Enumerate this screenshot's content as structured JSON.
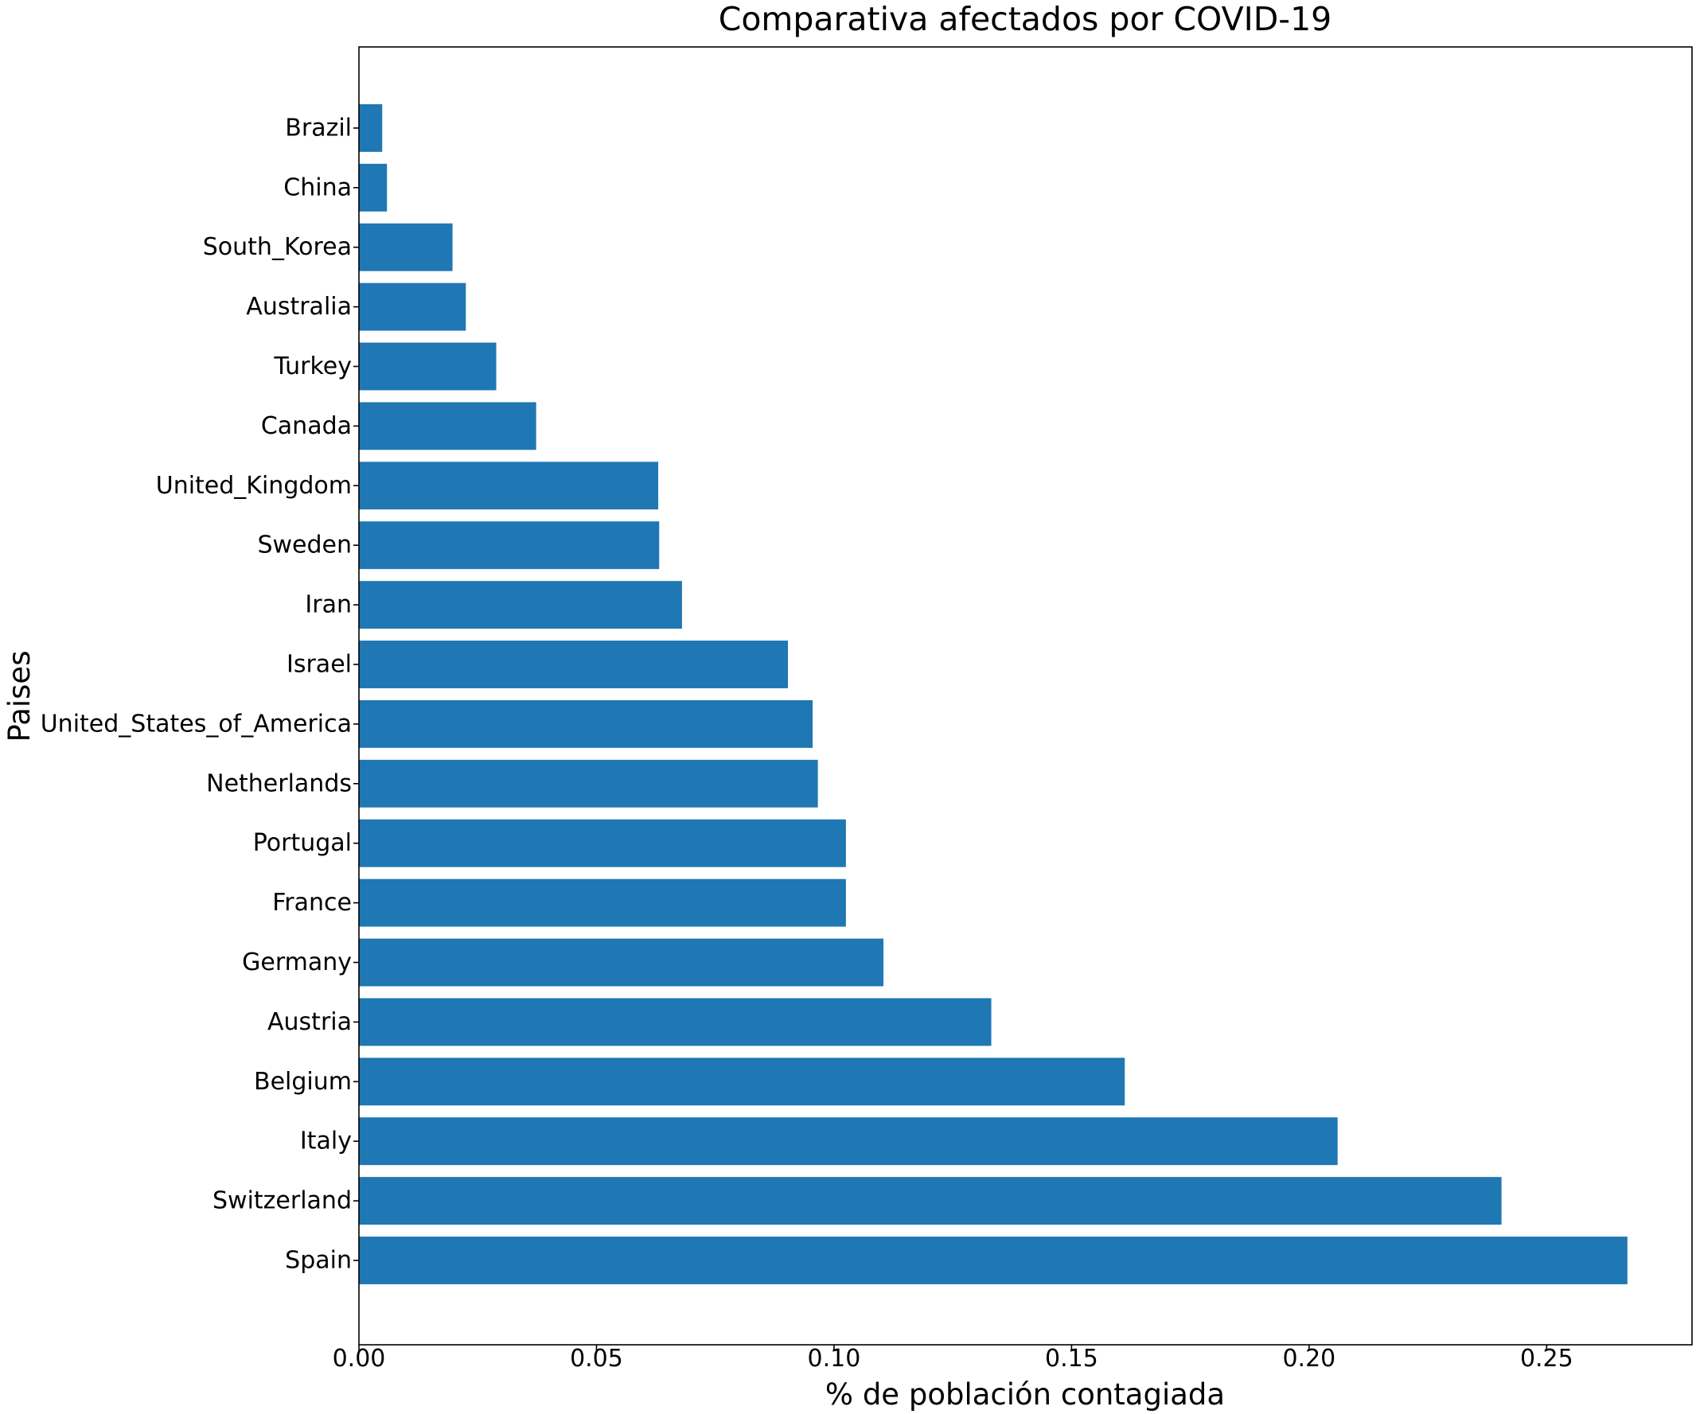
{
  "chart_data": {
    "type": "bar",
    "orientation": "horizontal",
    "title": "Comparativa afectados por COVID-19",
    "xlabel": "% de población contagiada",
    "ylabel": "Paises",
    "categories": [
      "Spain",
      "Switzerland",
      "Italy",
      "Belgium",
      "Austria",
      "Germany",
      "France",
      "Portugal",
      "Netherlands",
      "United_States_of_America",
      "Israel",
      "Iran",
      "Sweden",
      "United_Kingdom",
      "Canada",
      "Turkey",
      "Australia",
      "South_Korea",
      "China",
      "Brazil"
    ],
    "values": [
      0.267,
      0.2405,
      0.206,
      0.1612,
      0.1331,
      0.1104,
      0.1025,
      0.1025,
      0.0966,
      0.0955,
      0.0903,
      0.068,
      0.0632,
      0.063,
      0.0373,
      0.0289,
      0.0225,
      0.0197,
      0.0059,
      0.0049
    ],
    "xlim": [
      0,
      0.2806
    ],
    "xticks": [
      "0.00",
      "0.05",
      "0.10",
      "0.15",
      "0.20",
      "0.25"
    ],
    "bar_color": "#1f77b4",
    "grid": false,
    "legend": "none"
  }
}
